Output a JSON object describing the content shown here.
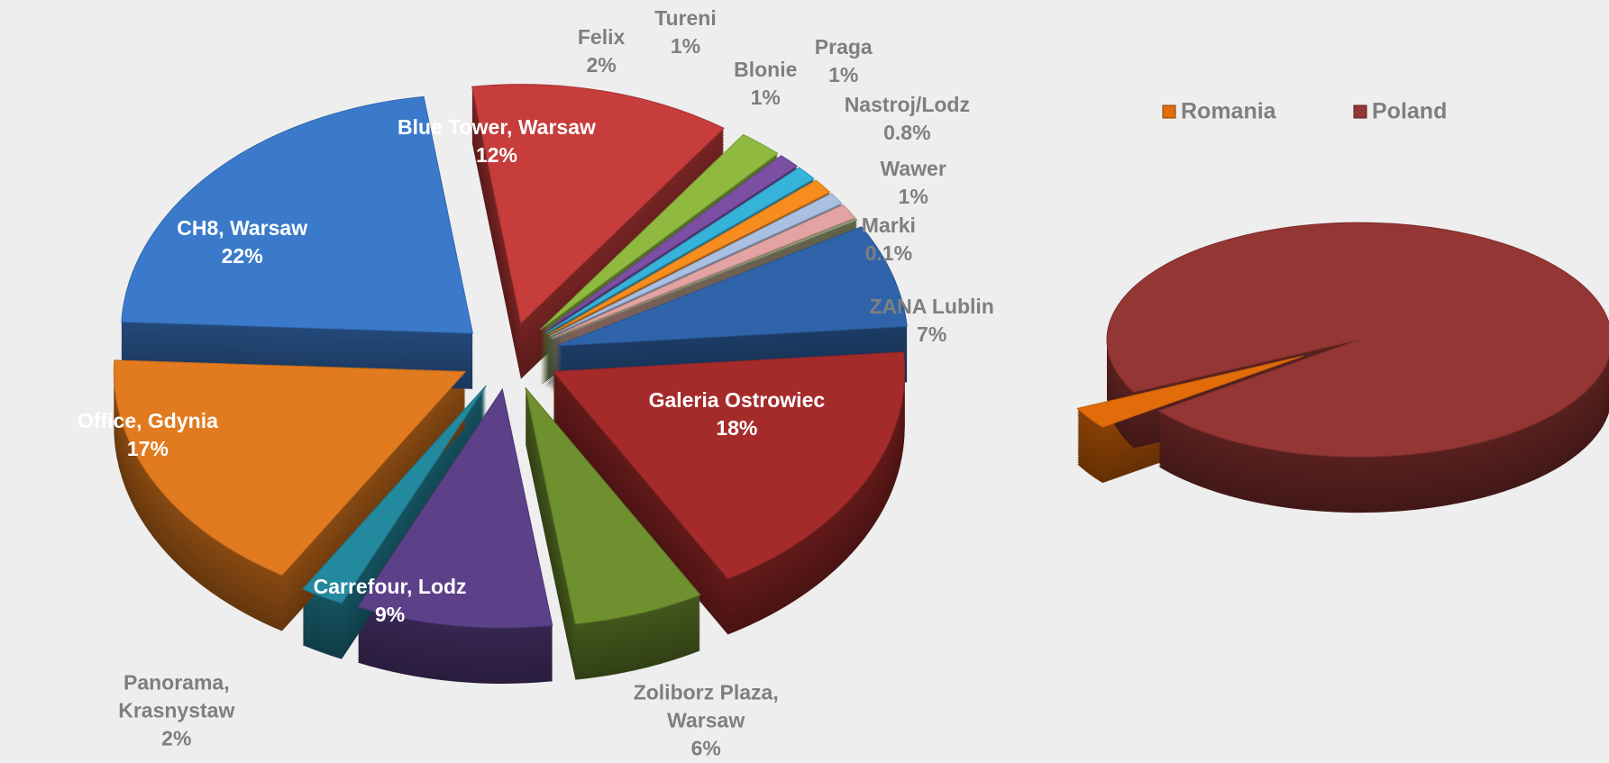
{
  "chart_data": [
    {
      "type": "pie3d",
      "categories": [
        "Blue Tower, Warsaw",
        "Felix",
        "Tureni",
        "Blonie",
        "Praga",
        "Nastroj/Lodz",
        "Wawer",
        "Marki",
        "ZANA Lublin",
        "Galeria Ostrowiec",
        "Zoliborz Plaza, Warsaw",
        "Carrefour, Lodz",
        "Panorama, Krasnystaw",
        "Office, Gdynia",
        "CH8, Warsaw"
      ],
      "values": [
        12,
        2,
        1,
        1,
        1,
        0.8,
        1,
        0.1,
        7,
        18,
        6,
        9,
        2,
        17,
        22
      ],
      "value_labels": [
        "12%",
        "2%",
        "1%",
        "1%",
        "1%",
        "0.8%",
        "1%",
        "0.1%",
        "7%",
        "18%",
        "6%",
        "9%",
        "2%",
        "17%",
        "22%"
      ],
      "colors": [
        "#c63d3b",
        "#8fba3f",
        "#7b4fa3",
        "#35b3d9",
        "#f78c1f",
        "#a9c0e3",
        "#e3a3a3",
        "#9aa77a",
        "#2f64aa",
        "#a52b2b",
        "#6f902f",
        "#5c4088",
        "#23899f",
        "#e27b1f",
        "#3b7acb"
      ]
    },
    {
      "type": "pie3d",
      "categories": [
        "Romania",
        "Poland"
      ],
      "values": [
        3,
        97
      ],
      "colors": [
        "#e36c0a",
        "#943634"
      ],
      "legend": "top"
    }
  ]
}
